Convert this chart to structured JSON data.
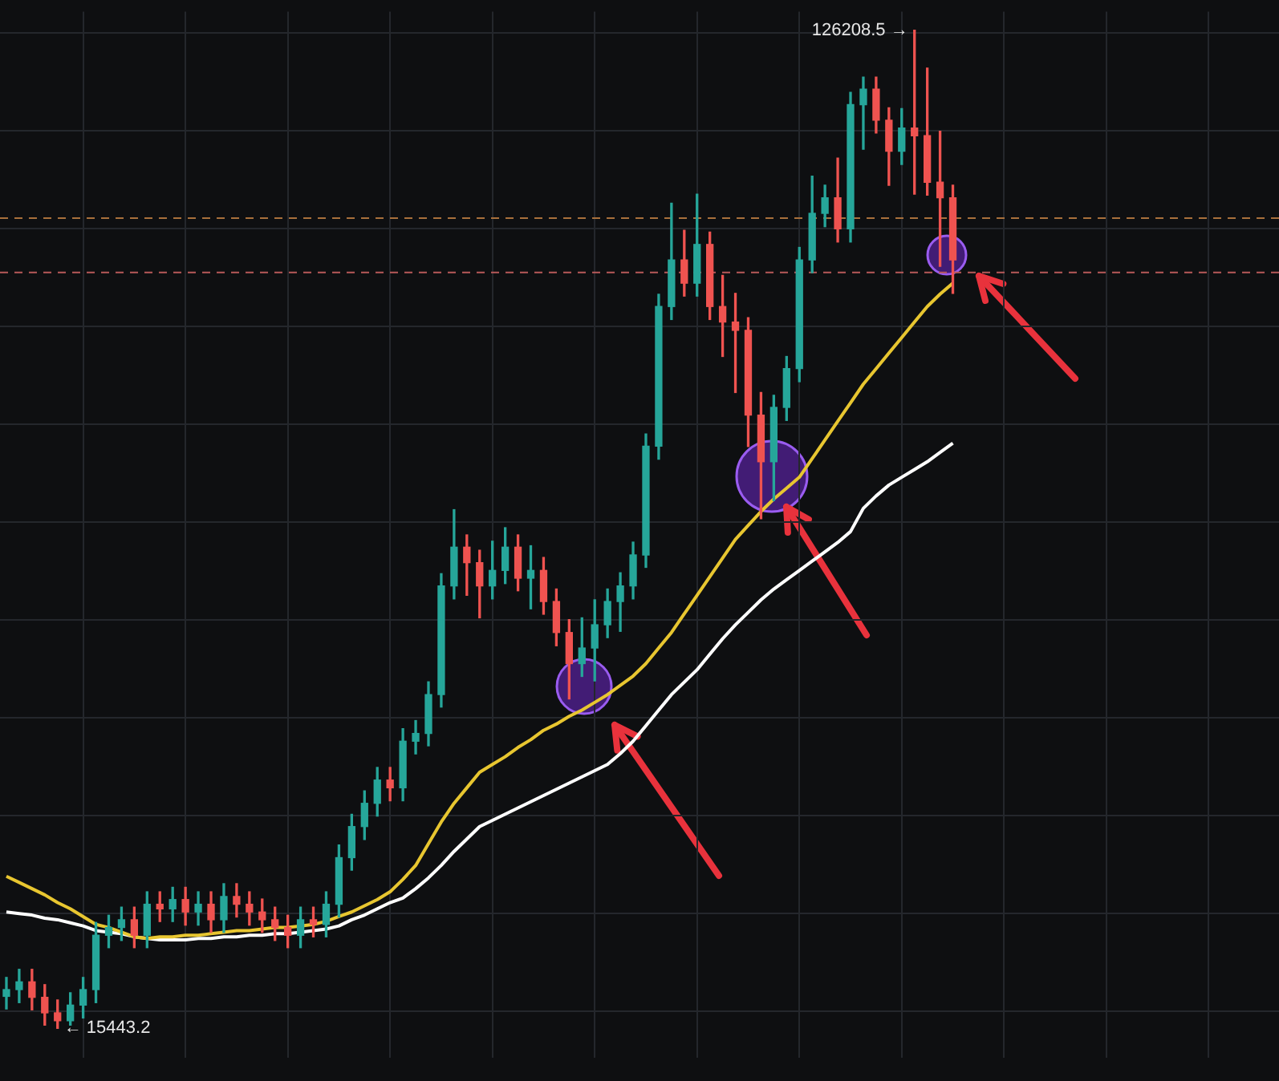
{
  "chart_data": {
    "type": "candlestick",
    "grid": true,
    "marker": "none",
    "ylim": [
      12170,
      128270
    ],
    "yticks": [
      {
        "value": 17340,
        "label": null
      },
      {
        "value": 28190,
        "label": null
      },
      {
        "value": 39040,
        "label": null
      },
      {
        "value": 49900,
        "label": null
      },
      {
        "value": 60750,
        "label": null
      },
      {
        "value": 71600,
        "label": null
      },
      {
        "value": 82450,
        "label": null
      },
      {
        "value": 93300,
        "label": null
      },
      {
        "value": 104160,
        "label": null
      },
      {
        "value": 115010,
        "label": null
      },
      {
        "value": 125860,
        "label": null
      }
    ],
    "categories": [
      null,
      null,
      null,
      null,
      null,
      null,
      null,
      null,
      null,
      null,
      null,
      null,
      null,
      null,
      null,
      null,
      null,
      null,
      null,
      null,
      null,
      null,
      null,
      null,
      null,
      null,
      null,
      null,
      null,
      null,
      null,
      null,
      null,
      null,
      null,
      null,
      null,
      null,
      null,
      null,
      null,
      null,
      null,
      null,
      null,
      null,
      null,
      null,
      null,
      null,
      null,
      null,
      null,
      null,
      null,
      null,
      null,
      null,
      null,
      null,
      null,
      null,
      null,
      null,
      null,
      null,
      null,
      null,
      null,
      null,
      null,
      null,
      null,
      null,
      null,
      null,
      null,
      null,
      null,
      null,
      null,
      null,
      null,
      null,
      null,
      null,
      null,
      null,
      null,
      null,
      null,
      null,
      null,
      null,
      null,
      null,
      null,
      null,
      null,
      null
    ],
    "ohlc": [
      [
        19000,
        21100,
        17600,
        19750
      ],
      [
        19750,
        22000,
        18300,
        20610
      ],
      [
        20610,
        22000,
        17500,
        18890
      ],
      [
        18890,
        20300,
        15800,
        17170
      ],
      [
        17170,
        18600,
        15443.2,
        16300
      ],
      [
        16300,
        19400,
        15800,
        18030
      ],
      [
        18030,
        21100,
        16600,
        19750
      ],
      [
        19750,
        27200,
        18300,
        25780
      ],
      [
        25780,
        28000,
        24400,
        26640
      ],
      [
        26640,
        28900,
        25200,
        27500
      ],
      [
        27500,
        28900,
        24400,
        25780
      ],
      [
        25780,
        30600,
        24400,
        29220
      ],
      [
        29220,
        30600,
        27300,
        28710
      ],
      [
        28710,
        31100,
        27300,
        29740
      ],
      [
        29740,
        31100,
        26900,
        28360
      ],
      [
        28360,
        30600,
        26900,
        29220
      ],
      [
        29220,
        30600,
        26100,
        27500
      ],
      [
        27500,
        31500,
        26100,
        30080
      ],
      [
        30080,
        31500,
        27800,
        29220
      ],
      [
        29220,
        30600,
        26900,
        28360
      ],
      [
        28360,
        29800,
        26100,
        27500
      ],
      [
        27500,
        28900,
        25200,
        26640
      ],
      [
        26640,
        28000,
        24400,
        25780
      ],
      [
        25780,
        28900,
        24400,
        27500
      ],
      [
        27500,
        28900,
        25600,
        26980
      ],
      [
        26980,
        30600,
        25600,
        29220
      ],
      [
        29220,
        35800,
        27800,
        34390
      ],
      [
        34390,
        39200,
        33000,
        37840
      ],
      [
        37840,
        41800,
        36400,
        40420
      ],
      [
        40420,
        44400,
        39000,
        43000
      ],
      [
        43000,
        44400,
        40700,
        42140
      ],
      [
        42140,
        48700,
        40700,
        47310
      ],
      [
        47310,
        49600,
        45900,
        48170
      ],
      [
        48170,
        53900,
        46800,
        52480
      ],
      [
        52480,
        65900,
        51100,
        64540
      ],
      [
        64540,
        73000,
        63100,
        68840
      ],
      [
        68840,
        70200,
        63500,
        67120
      ],
      [
        67120,
        68500,
        61000,
        64540
      ],
      [
        64540,
        69500,
        63100,
        66260
      ],
      [
        66260,
        71000,
        64800,
        68840
      ],
      [
        68840,
        70200,
        64000,
        65400
      ],
      [
        65400,
        69000,
        62000,
        66260
      ],
      [
        66260,
        67700,
        61400,
        62810
      ],
      [
        62810,
        64200,
        57900,
        59370
      ],
      [
        59370,
        60800,
        52000,
        55920
      ],
      [
        55920,
        61000,
        54500,
        57650
      ],
      [
        57650,
        63000,
        54000,
        60230
      ],
      [
        60230,
        64200,
        58800,
        62810
      ],
      [
        62810,
        66000,
        59500,
        64540
      ],
      [
        64540,
        69400,
        63100,
        67980
      ],
      [
        67980,
        81400,
        66600,
        80040
      ],
      [
        80040,
        96900,
        78600,
        95540
      ],
      [
        95540,
        107000,
        94100,
        100710
      ],
      [
        100710,
        104000,
        96700,
        98130
      ],
      [
        98130,
        108000,
        96700,
        102430
      ],
      [
        102430,
        103800,
        94100,
        95540
      ],
      [
        95540,
        99000,
        90000,
        93820
      ],
      [
        93820,
        97000,
        86000,
        92900
      ],
      [
        92900,
        94300,
        80000,
        83490
      ],
      [
        83490,
        86000,
        72000,
        78320
      ],
      [
        78320,
        85700,
        74000,
        84350
      ],
      [
        84350,
        90000,
        82900,
        88650
      ],
      [
        88650,
        102100,
        87200,
        100710
      ],
      [
        100710,
        110000,
        99300,
        105880
      ],
      [
        105880,
        109000,
        104400,
        107600
      ],
      [
        107600,
        112000,
        102700,
        104160
      ],
      [
        104160,
        119300,
        102700,
        117940
      ],
      [
        117940,
        121000,
        113000,
        119660
      ],
      [
        119660,
        121000,
        114800,
        116210
      ],
      [
        116210,
        117600,
        109000,
        112770
      ],
      [
        112770,
        117500,
        111300,
        115350
      ],
      [
        115350,
        126208.5,
        108000,
        114490
      ],
      [
        114490,
        122000,
        107900,
        109330
      ],
      [
        109330,
        115000,
        100000,
        107600
      ],
      [
        107600,
        109000,
        97000,
        100710
      ],
      null,
      null,
      null,
      null,
      null,
      null,
      null,
      null,
      null,
      null,
      null,
      null,
      null,
      null,
      null,
      null,
      null,
      null,
      null,
      null,
      null,
      null,
      null,
      null,
      null
    ],
    "colors": [
      "#26a69a",
      "#26a69a",
      "#ef5350",
      "#ef5350",
      "#ef5350",
      "#26a69a",
      "#26a69a",
      "#26a69a",
      "#26a69a",
      "#26a69a",
      "#ef5350",
      "#26a69a",
      "#ef5350",
      "#26a69a",
      "#ef5350",
      "#26a69a",
      "#ef5350",
      "#26a69a",
      "#ef5350",
      "#ef5350",
      "#ef5350",
      "#ef5350",
      "#ef5350",
      "#26a69a",
      "#ef5350",
      "#26a69a",
      "#26a69a",
      "#26a69a",
      "#26a69a",
      "#26a69a",
      "#ef5350",
      "#26a69a",
      "#26a69a",
      "#26a69a",
      "#26a69a",
      "#26a69a",
      "#ef5350",
      "#ef5350",
      "#26a69a",
      "#26a69a",
      "#ef5350",
      "#26a69a",
      "#ef5350",
      "#ef5350",
      "#ef5350",
      "#26a69a",
      "#26a69a",
      "#26a69a",
      "#26a69a",
      "#26a69a",
      "#26a69a",
      "#26a69a",
      "#26a69a",
      "#ef5350",
      "#26a69a",
      "#ef5350",
      "#ef5350",
      "#ef5350",
      "#ef5350",
      "#ef5350",
      "#26a69a",
      "#26a69a",
      "#26a69a",
      "#26a69a",
      "#26a69a",
      "#ef5350",
      "#26a69a",
      "#26a69a",
      "#ef5350",
      "#ef5350",
      "#26a69a",
      "#ef5350",
      "#ef5350",
      "#ef5350",
      "#ef5350",
      null,
      null,
      null,
      null,
      null,
      null,
      null,
      null,
      null,
      null,
      null,
      null,
      null,
      null,
      null,
      null,
      null,
      null,
      null,
      null,
      null,
      null,
      null,
      null,
      null
    ],
    "series": [
      {
        "type": "line",
        "color": "#e8c630",
        "values": [
          32320,
          31640,
          30950,
          30260,
          29400,
          28710,
          27850,
          26980,
          26640,
          26120,
          25610,
          25430,
          25610,
          25610,
          25780,
          25780,
          25950,
          26120,
          26300,
          26300,
          26470,
          26640,
          26640,
          26810,
          26980,
          27330,
          27850,
          28360,
          29050,
          29740,
          30600,
          31980,
          33530,
          35940,
          38350,
          40420,
          42140,
          43870,
          44730,
          45590,
          46620,
          47480,
          48520,
          49210,
          50070,
          50760,
          51620,
          52480,
          53510,
          54540,
          55920,
          57650,
          59370,
          61440,
          63500,
          65570,
          67640,
          69700,
          71260,
          72800,
          74180,
          75390,
          76600,
          78660,
          80730,
          82800,
          84860,
          86930,
          88650,
          90380,
          92100,
          93820,
          95540,
          96920,
          98130,
          null,
          null,
          null,
          null,
          null,
          null,
          null,
          null,
          null,
          null,
          null,
          null,
          null,
          null,
          null,
          null,
          null,
          null,
          null,
          null,
          null,
          null,
          null,
          null,
          null
        ]
      },
      {
        "type": "line",
        "color": "#ffffff",
        "values": [
          28360,
          28190,
          28020,
          27670,
          27500,
          27160,
          26810,
          26300,
          26120,
          25950,
          25610,
          25430,
          25260,
          25260,
          25260,
          25430,
          25430,
          25610,
          25610,
          25780,
          25780,
          25950,
          25950,
          26120,
          26300,
          26470,
          26810,
          27500,
          28020,
          28710,
          29400,
          29910,
          30950,
          32150,
          33530,
          35080,
          36460,
          37840,
          38520,
          39210,
          39900,
          40590,
          41280,
          41970,
          42660,
          43350,
          44040,
          44730,
          45930,
          47310,
          49030,
          50760,
          52480,
          53860,
          55240,
          56960,
          58680,
          60230,
          61610,
          62990,
          64190,
          65230,
          66260,
          67290,
          68330,
          69360,
          70570,
          73150,
          74530,
          75730,
          76600,
          77460,
          78320,
          79350,
          80380,
          null,
          null,
          null,
          null,
          null,
          null,
          null,
          null,
          null,
          null,
          null,
          null,
          null,
          null,
          null,
          null,
          null,
          null,
          null,
          null,
          null,
          null,
          null,
          null,
          null
        ]
      }
    ],
    "ref_lines": [
      {
        "axis": "y",
        "value": 105360,
        "color": "#a8703c",
        "line_style": "dashed"
      },
      {
        "axis": "y",
        "value": 99330,
        "color": "#b85a5a",
        "line_style": "dashed"
      }
    ],
    "annotations": [
      "126208.5 →",
      "← 15443.2"
    ]
  }
}
